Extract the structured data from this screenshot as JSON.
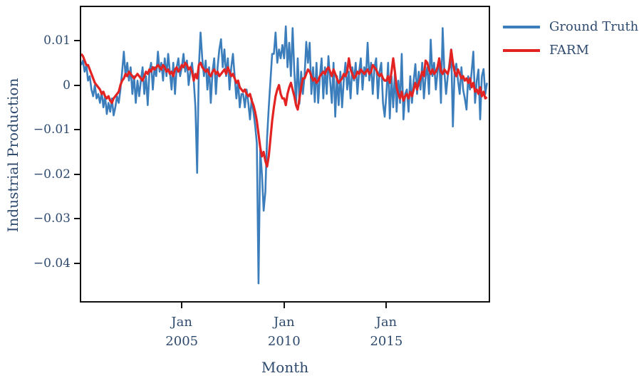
{
  "figure": {
    "background": "#ffffff",
    "text_color": "#2e4a6e",
    "axis_color": "#111111"
  },
  "chart_data": {
    "type": "line",
    "title": "",
    "xlabel": "Month",
    "ylabel": "Industrial Production",
    "grid": false,
    "legend_position": "outside-top-right",
    "x_unit": "decimal_year_monthly",
    "x_start": 2000.0833,
    "x_step": 0.0833333,
    "xlim": [
      2000.083,
      2020.0
    ],
    "ylim": [
      -0.0485,
      0.0175
    ],
    "value_scale": 0.001,
    "yticks": [
      {
        "value": 0.01,
        "label": "0.01"
      },
      {
        "value": 0,
        "label": "0"
      },
      {
        "value": -0.01,
        "label": "−0.01"
      },
      {
        "value": -0.02,
        "label": "−0.02"
      },
      {
        "value": -0.03,
        "label": "−0.03"
      },
      {
        "value": -0.04,
        "label": "−0.04"
      }
    ],
    "xticks": [
      {
        "value": 2005.0,
        "label": "Jan\n2005"
      },
      {
        "value": 2010.0,
        "label": "Jan\n2010"
      },
      {
        "value": 2015.0,
        "label": "Jan\n2015"
      }
    ],
    "series": [
      {
        "name": "Ground Truth",
        "color": "#3c7ebc",
        "width": 2.6,
        "values": [
          4.5,
          5.5,
          3,
          4.5,
          1,
          2,
          -1,
          -2.5,
          0,
          -3,
          -2,
          -4,
          -1.5,
          -5,
          -2.5,
          -6.5,
          -4,
          -6,
          -3,
          -6.8,
          -5,
          -2.5,
          -4,
          -1,
          3,
          7.5,
          2,
          5,
          1,
          4,
          -2,
          2,
          -4,
          1,
          -2.5,
          1,
          4,
          -2,
          2,
          -4.5,
          3,
          5,
          -1,
          4,
          2,
          7.5,
          3,
          5,
          1,
          6,
          2,
          7,
          3,
          -1,
          5,
          -2,
          4,
          6,
          2,
          4,
          7,
          3,
          5.5,
          0,
          3,
          5,
          1,
          -5,
          -19.7,
          4,
          11.8,
          6,
          2,
          5.5,
          -1,
          4,
          -4,
          3,
          6,
          -2,
          4,
          8,
          10.3,
          4,
          8,
          2,
          6,
          -1,
          4,
          7,
          2,
          -3,
          1,
          -5,
          -2,
          -2,
          -5,
          -1,
          -4,
          -7.7,
          -3,
          -6,
          -9,
          -13,
          -44.5,
          -14.5,
          -20,
          -28.2,
          -24,
          -12,
          -5,
          1,
          7,
          7,
          11.8,
          5,
          8,
          6,
          9,
          6,
          13.2,
          4,
          9.5,
          2,
          12.8,
          3,
          -4,
          6,
          -4.2,
          3,
          -2,
          2,
          9.7,
          5,
          9.5,
          -2,
          4,
          -3.8,
          5,
          -4,
          2,
          6,
          -3,
          4,
          -2,
          6.5,
          1,
          -4,
          5,
          -7.1,
          2,
          -4.5,
          3,
          -5,
          1,
          5,
          -1,
          3,
          -3,
          4,
          1,
          5,
          -2,
          3,
          6,
          -1,
          4,
          2,
          9.5,
          1,
          5,
          -2,
          4,
          6,
          -3,
          3,
          5,
          -4,
          -7.1,
          -2,
          5,
          -7.5,
          2,
          -5,
          3,
          -6,
          1,
          -4,
          7,
          -7.7,
          -2,
          -1,
          -6,
          2,
          -4,
          1,
          4.7,
          -2,
          3,
          -1,
          5,
          -3,
          2,
          4,
          -2,
          10.2,
          2,
          5,
          -1,
          3,
          6,
          -4,
          12.8,
          3,
          -2,
          2,
          5,
          8,
          -9.3,
          3,
          4.8,
          1,
          -2,
          4,
          -1,
          -3,
          -5.5,
          2,
          -1,
          3,
          7.5,
          -4,
          1,
          3.5,
          -7.7,
          2,
          3.6,
          -2,
          0.5
        ]
      },
      {
        "name": "FARM",
        "color": "#e32222",
        "width": 3.2,
        "values": [
          7,
          6.5,
          5.5,
          4.5,
          4.5,
          3.5,
          2.5,
          1.5,
          0.5,
          0,
          -0.5,
          -1,
          -2,
          -1.5,
          -2.5,
          -3,
          -2.5,
          -3.5,
          -4,
          -3,
          -2.5,
          -2,
          -1.5,
          0,
          1,
          1.5,
          2.5,
          2,
          3,
          2.5,
          2,
          1.5,
          2,
          2.5,
          2,
          1.5,
          1,
          2,
          3,
          2.5,
          3.5,
          3,
          4,
          3.5,
          4,
          4.5,
          4,
          3.5,
          4.5,
          4,
          3,
          3.5,
          2.5,
          3,
          2,
          3.5,
          4,
          3,
          3.5,
          4.5,
          4,
          5,
          4.5,
          3.5,
          4,
          3,
          1,
          2.5,
          1.5,
          4.5,
          5,
          4,
          3.5,
          3,
          3.5,
          2.5,
          2,
          3,
          3.5,
          2.5,
          3,
          2,
          2.5,
          3,
          3.5,
          2.5,
          4,
          3,
          2,
          2.5,
          1.5,
          0.5,
          1,
          -0.5,
          -1,
          -1.5,
          -1,
          -2,
          -2.5,
          -2,
          -3.5,
          -4.5,
          -6,
          -8,
          -11,
          -14,
          -16,
          -15,
          -17,
          -18.3,
          -16,
          -12,
          -8,
          -5,
          -2.5,
          -1,
          0,
          -2,
          -3,
          -3,
          -4.5,
          -2,
          -0.5,
          0.5,
          -1,
          -2.5,
          -4.5,
          -5.5,
          -3,
          -0.5,
          1.5,
          1.5,
          2.5,
          3.5,
          3,
          2,
          1,
          1.5,
          0.5,
          1,
          2,
          2.5,
          3,
          2.5,
          3.5,
          4,
          3,
          2,
          3.5,
          2.5,
          1.5,
          0.5,
          1,
          1.5,
          2.5,
          2,
          3,
          6,
          3.5,
          2.5,
          1.5,
          2,
          3,
          2.5,
          3.5,
          3,
          2.5,
          3,
          3.5,
          2.5,
          3,
          4.5,
          4,
          3.5,
          2.5,
          2,
          2.5,
          1.5,
          1,
          1,
          2,
          0.5,
          3,
          6,
          3,
          -0.5,
          -2,
          -3,
          -1.5,
          -3.5,
          -2.5,
          -2,
          -3,
          -1.5,
          -2.5,
          -1,
          0.5,
          -1,
          0.5,
          1.5,
          3,
          2,
          5.5,
          5,
          3.5,
          2.5,
          3.5,
          2.5,
          3,
          4,
          6,
          3,
          2.5,
          3.5,
          3,
          2.5,
          4,
          7.9,
          5,
          3,
          2,
          3.5,
          2.5,
          1.5,
          2,
          1,
          1.5,
          0.5,
          1.5,
          -0.5,
          0.5,
          -1.5,
          -1,
          -2,
          -0.5,
          -2.5,
          -1.5,
          -3,
          -2.7
        ]
      }
    ]
  }
}
